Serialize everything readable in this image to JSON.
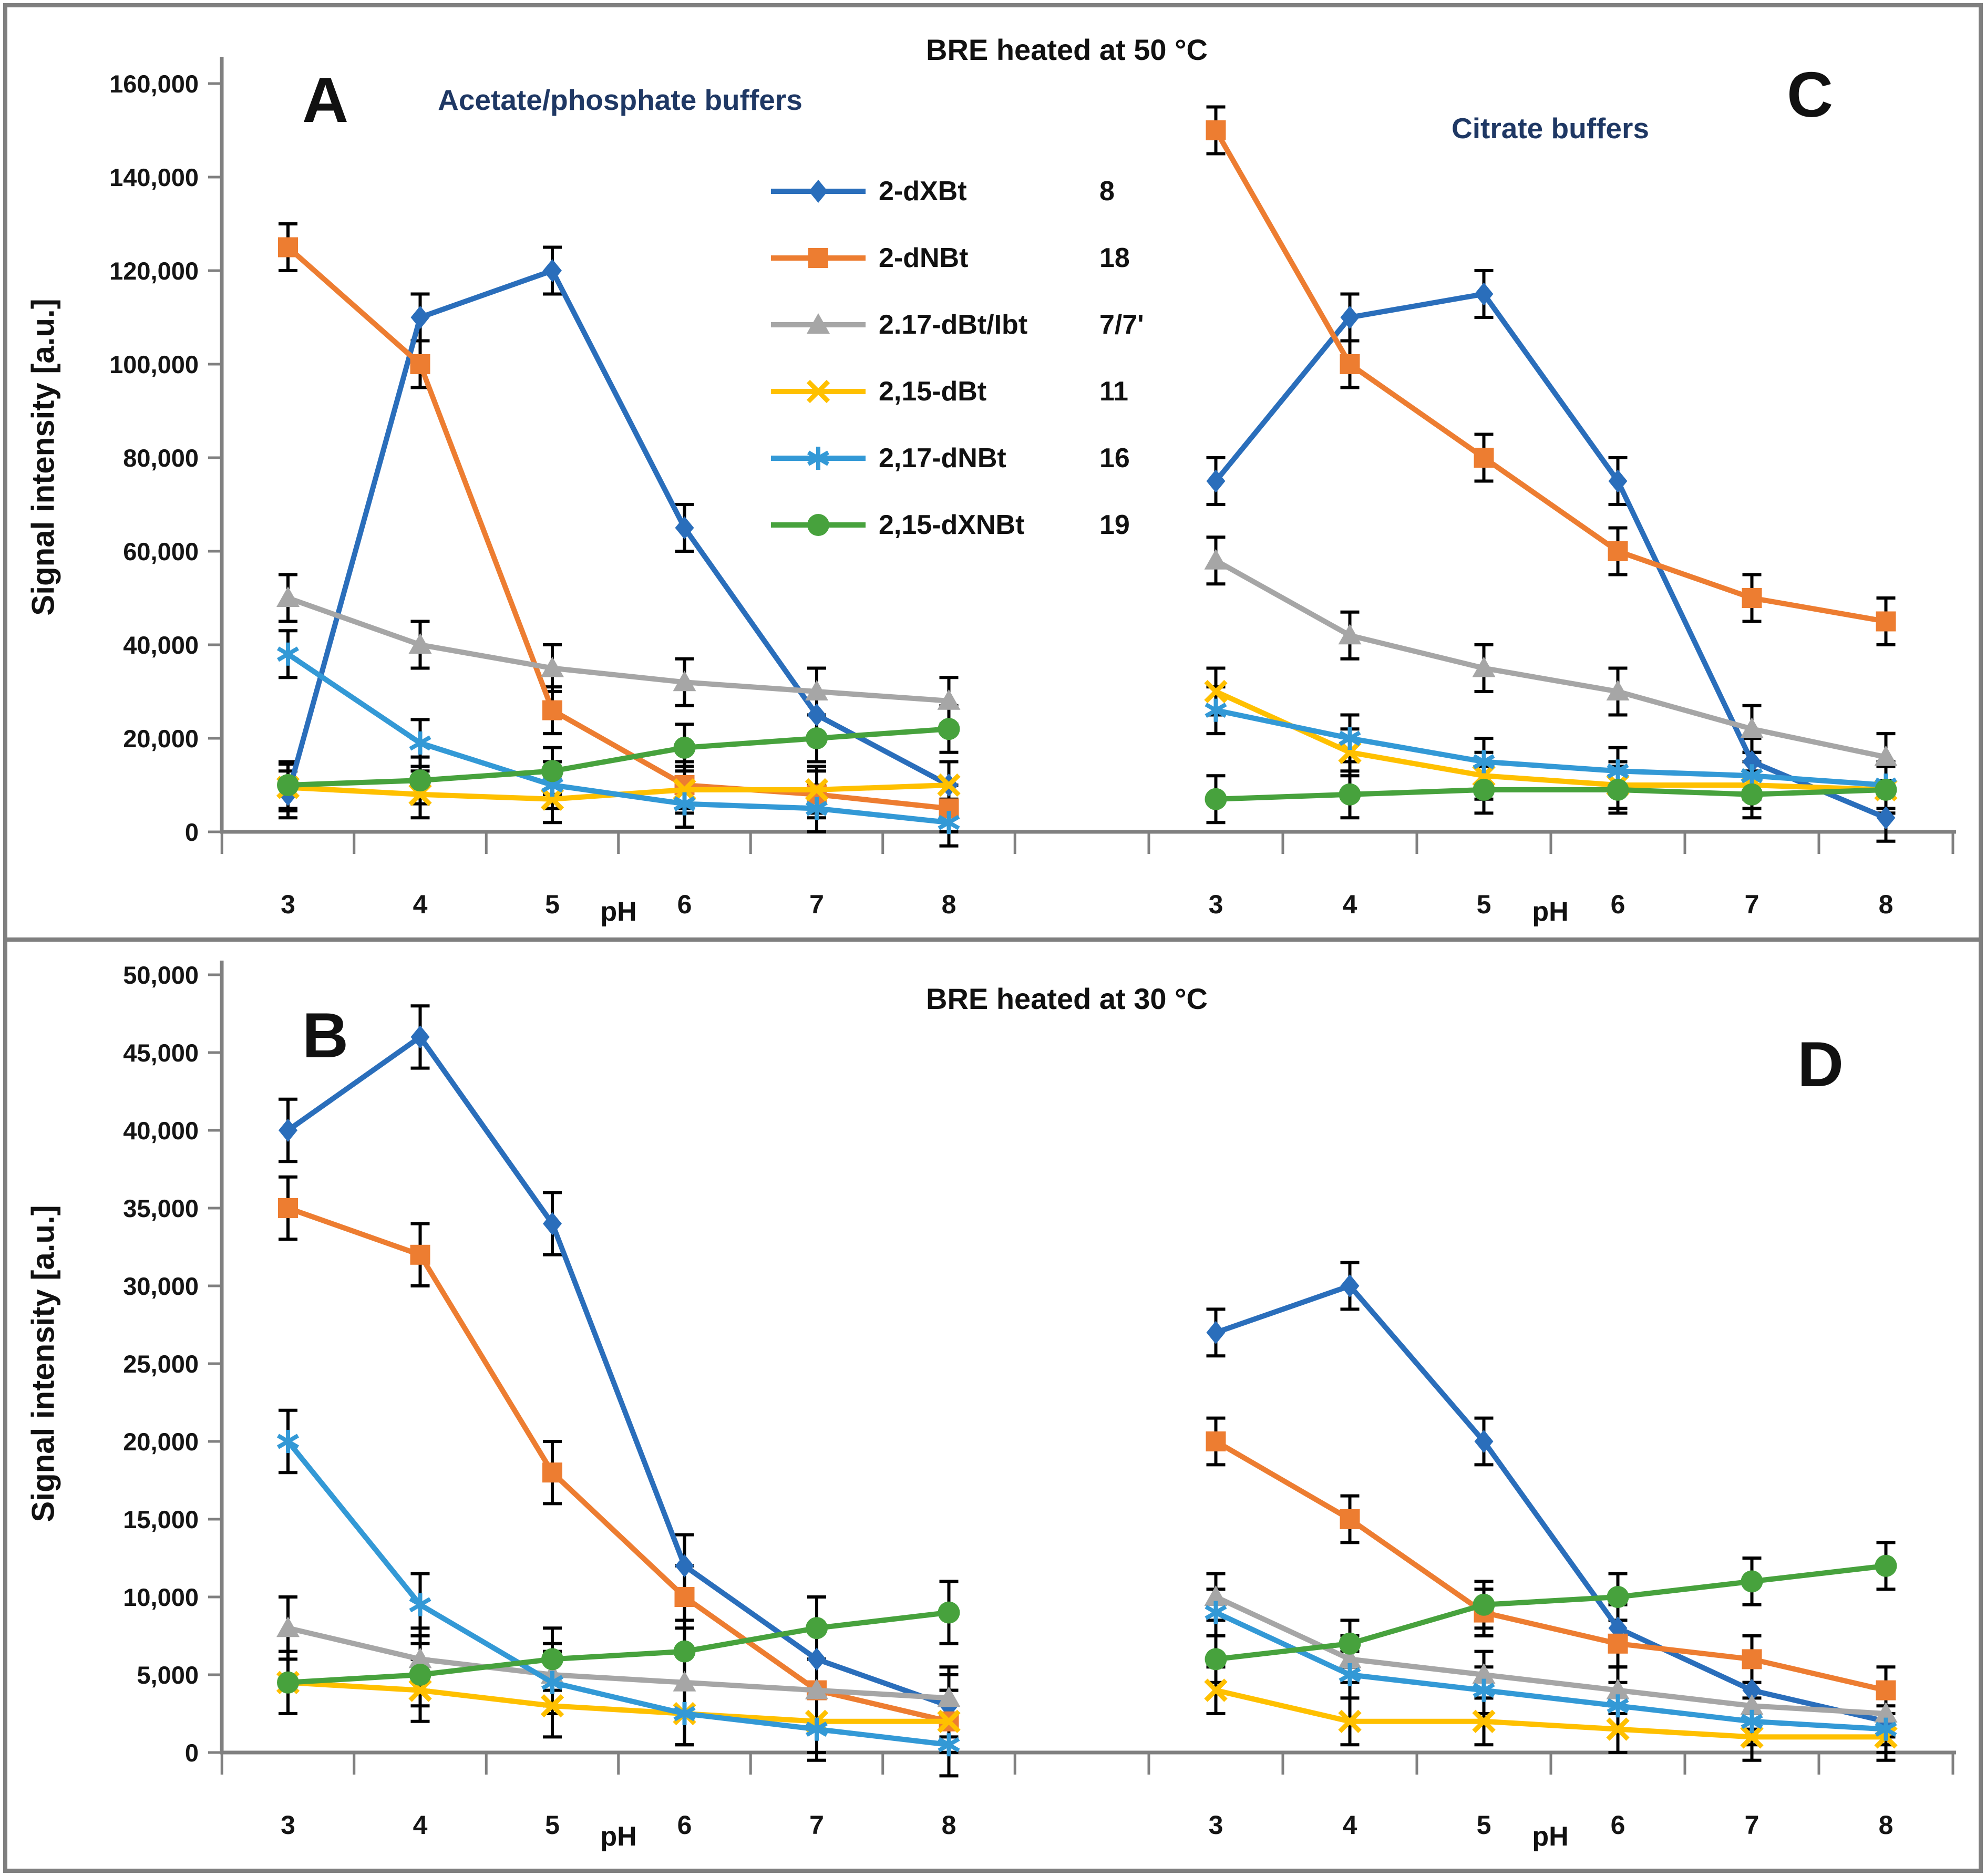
{
  "titles": {
    "row1": "BRE heated at 50 °C",
    "row2": "BRE heated at 30 °C",
    "subtitle_left": "Acetate/phosphate buffers",
    "subtitle_right": "Citrate buffers"
  },
  "panel_letters": {
    "a": "A",
    "b": "B",
    "c": "C",
    "d": "D"
  },
  "axes": {
    "xlabel": "pH",
    "x_values": [
      "3",
      "4",
      "5",
      "6",
      "7",
      "8"
    ],
    "row1": {
      "ylabel": "Signal intensity [a.u.]",
      "ylim": [
        0,
        160000
      ],
      "ystep": 20000,
      "ytick_labels": [
        "0",
        "20,000",
        "40,000",
        "60,000",
        "80,000",
        "100,000",
        "120,000",
        "140,000",
        "160,000"
      ]
    },
    "row2": {
      "ylabel": "Signal intensity [a.u.]",
      "ylim": [
        0,
        50000
      ],
      "ystep": 5000,
      "ytick_labels": [
        "0",
        "5,000",
        "10,000",
        "15,000",
        "20,000",
        "25,000",
        "30,000",
        "35,000",
        "40,000",
        "45,000",
        "50,000"
      ]
    }
  },
  "colors": {
    "axis": "#808080",
    "error_bar": "#000000",
    "series_blue": "#2A6EBB",
    "series_orange": "#ED7D31",
    "series_gray": "#A6A6A6",
    "series_yellow": "#FFC000",
    "series_lightblue": "#3399D6",
    "series_green": "#47A23D",
    "subtitle": "#1F3864"
  },
  "legend": {
    "items": [
      {
        "label": "2-dXBt",
        "number": "8",
        "marker": "diamond",
        "color": "#2A6EBB"
      },
      {
        "label": "2-dNBt",
        "number": "18",
        "marker": "square",
        "color": "#ED7D31"
      },
      {
        "label": "2.17-dBt/Ibt",
        "number": "7/7'",
        "marker": "triangle",
        "color": "#A6A6A6"
      },
      {
        "label": "2,15-dBt",
        "number": "11",
        "marker": "x",
        "color": "#FFC000"
      },
      {
        "label": "2,17-dNBt",
        "number": "16",
        "marker": "asterisk",
        "color": "#3399D6"
      },
      {
        "label": "2,15-dXNBt",
        "number": "19",
        "marker": "circle",
        "color": "#47A23D"
      }
    ]
  },
  "chart_data": [
    {
      "id": "A",
      "type": "line",
      "title": "BRE heated at 50 °C",
      "subtitle": "Acetate/phosphate buffers",
      "x": [
        3,
        4,
        5,
        6,
        7,
        8
      ],
      "xlabel": "pH",
      "ylabel": "Signal intensity [a.u.]",
      "ylim": [
        0,
        160000
      ],
      "error_bar": 5000,
      "series": [
        {
          "name": "2-dXBt 8",
          "marker": "diamond",
          "color": "#2A6EBB",
          "values": [
            8000,
            110000,
            120000,
            65000,
            25000,
            10000
          ]
        },
        {
          "name": "2-dNBt 18",
          "marker": "square",
          "color": "#ED7D31",
          "values": [
            125000,
            100000,
            26000,
            10000,
            8000,
            5000
          ]
        },
        {
          "name": "2.17-dBt/Ibt 7/7'",
          "marker": "triangle",
          "color": "#A6A6A6",
          "values": [
            50000,
            40000,
            35000,
            32000,
            30000,
            28000
          ]
        },
        {
          "name": "2,15-dBt 11",
          "marker": "x",
          "color": "#FFC000",
          "values": [
            9500,
            8000,
            7000,
            9000,
            9000,
            10000
          ]
        },
        {
          "name": "2,17-dNBt 16",
          "marker": "asterisk",
          "color": "#3399D6",
          "values": [
            38000,
            19000,
            10000,
            6000,
            5000,
            2000
          ]
        },
        {
          "name": "2,15-dXNBt 19",
          "marker": "circle",
          "color": "#47A23D",
          "values": [
            10000,
            11000,
            13000,
            18000,
            20000,
            22000
          ]
        }
      ]
    },
    {
      "id": "C",
      "type": "line",
      "title": "BRE heated at 50 °C",
      "subtitle": "Citrate buffers",
      "x": [
        3,
        4,
        5,
        6,
        7,
        8
      ],
      "xlabel": "pH",
      "ylabel": "Signal intensity [a.u.]",
      "ylim": [
        0,
        160000
      ],
      "error_bar": 5000,
      "series": [
        {
          "name": "2-dXBt 8",
          "marker": "diamond",
          "color": "#2A6EBB",
          "values": [
            75000,
            110000,
            115000,
            75000,
            15000,
            3000
          ]
        },
        {
          "name": "2-dNBt 18",
          "marker": "square",
          "color": "#ED7D31",
          "values": [
            150000,
            100000,
            80000,
            60000,
            50000,
            45000
          ]
        },
        {
          "name": "2.17-dBt/Ibt 7/7'",
          "marker": "triangle",
          "color": "#A6A6A6",
          "values": [
            58000,
            42000,
            35000,
            30000,
            22000,
            16000
          ]
        },
        {
          "name": "2,15-dBt 11",
          "marker": "x",
          "color": "#FFC000",
          "values": [
            30000,
            17000,
            12000,
            10000,
            10000,
            9000
          ]
        },
        {
          "name": "2,17-dNBt 16",
          "marker": "asterisk",
          "color": "#3399D6",
          "values": [
            26000,
            20000,
            15000,
            13000,
            12000,
            10000
          ]
        },
        {
          "name": "2,15-dXNBt 19",
          "marker": "circle",
          "color": "#47A23D",
          "values": [
            7000,
            8000,
            9000,
            9000,
            8000,
            9000
          ]
        }
      ]
    },
    {
      "id": "B",
      "type": "line",
      "title": "BRE heated at 30 °C",
      "subtitle": "Acetate/phosphate buffers",
      "x": [
        3,
        4,
        5,
        6,
        7,
        8
      ],
      "xlabel": "pH",
      "ylabel": "Signal intensity [a.u.]",
      "ylim": [
        0,
        50000
      ],
      "error_bar": 2000,
      "series": [
        {
          "name": "2-dXBt 8",
          "marker": "diamond",
          "color": "#2A6EBB",
          "values": [
            40000,
            46000,
            34000,
            12000,
            6000,
            3000
          ]
        },
        {
          "name": "2-dNBt 18",
          "marker": "square",
          "color": "#ED7D31",
          "values": [
            35000,
            32000,
            18000,
            10000,
            4000,
            2000
          ]
        },
        {
          "name": "2.17-dBt/Ibt 7/7'",
          "marker": "triangle",
          "color": "#A6A6A6",
          "values": [
            8000,
            6000,
            5000,
            4500,
            4000,
            3500
          ]
        },
        {
          "name": "2,15-dBt 11",
          "marker": "x",
          "color": "#FFC000",
          "values": [
            4500,
            4000,
            3000,
            2500,
            2000,
            2000
          ]
        },
        {
          "name": "2,17-dNBt 16",
          "marker": "asterisk",
          "color": "#3399D6",
          "values": [
            20000,
            9500,
            4500,
            2500,
            1500,
            500
          ]
        },
        {
          "name": "2,15-dXNBt 19",
          "marker": "circle",
          "color": "#47A23D",
          "values": [
            4500,
            5000,
            6000,
            6500,
            8000,
            9000
          ]
        }
      ]
    },
    {
      "id": "D",
      "type": "line",
      "title": "BRE heated at 30 °C",
      "subtitle": "Citrate buffers",
      "x": [
        3,
        4,
        5,
        6,
        7,
        8
      ],
      "xlabel": "pH",
      "ylabel": "Signal intensity [a.u.]",
      "ylim": [
        0,
        50000
      ],
      "error_bar": 1500,
      "series": [
        {
          "name": "2-dXBt 8",
          "marker": "diamond",
          "color": "#2A6EBB",
          "values": [
            27000,
            30000,
            20000,
            8000,
            4000,
            2000
          ]
        },
        {
          "name": "2-dNBt 18",
          "marker": "square",
          "color": "#ED7D31",
          "values": [
            20000,
            15000,
            9000,
            7000,
            6000,
            4000
          ]
        },
        {
          "name": "2.17-dBt/Ibt 7/7'",
          "marker": "triangle",
          "color": "#A6A6A6",
          "values": [
            10000,
            6000,
            5000,
            4000,
            3000,
            2500
          ]
        },
        {
          "name": "2,15-dBt 11",
          "marker": "x",
          "color": "#FFC000",
          "values": [
            4000,
            2000,
            2000,
            1500,
            1000,
            1000
          ]
        },
        {
          "name": "2,17-dNBt 16",
          "marker": "asterisk",
          "color": "#3399D6",
          "values": [
            9000,
            5000,
            4000,
            3000,
            2000,
            1500
          ]
        },
        {
          "name": "2,15-dXNBt 19",
          "marker": "circle",
          "color": "#47A23D",
          "values": [
            6000,
            7000,
            9500,
            10000,
            11000,
            12000
          ]
        }
      ]
    }
  ]
}
